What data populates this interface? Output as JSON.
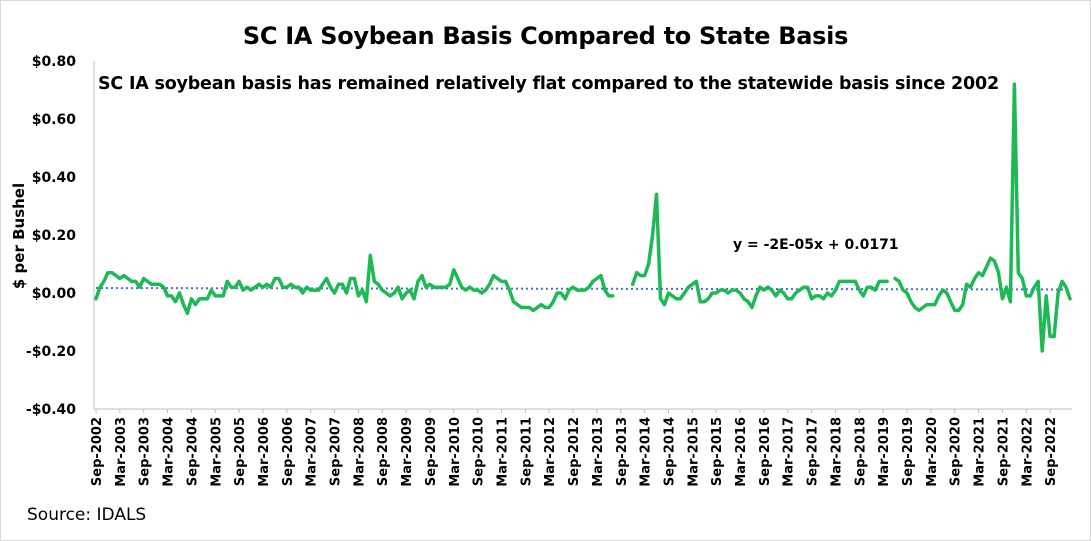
{
  "chart_data": {
    "type": "line",
    "title": "SC IA Soybean Basis Compared to State Basis",
    "subtitle": "SC IA soybean basis has remained relatively flat compared to the statewide basis since 2002",
    "ylabel": "$ per Bushel",
    "xlabel": "",
    "ylim": [
      -0.4,
      0.8
    ],
    "yticks": [
      0.8,
      0.6,
      0.4,
      0.2,
      0.0,
      -0.2,
      -0.4
    ],
    "ytick_labels": [
      "$0.80",
      "$0.60",
      "$0.40",
      "$0.20",
      "$0.00",
      "-$0.20",
      "-$0.40"
    ],
    "xtick_labels": [
      "Sep-2002",
      "Mar-2003",
      "Sep-2003",
      "Mar-2004",
      "Sep-2004",
      "Mar-2005",
      "Sep-2005",
      "Mar-2006",
      "Sep-2006",
      "Mar-2007",
      "Sep-2007",
      "Mar-2008",
      "Sep-2008",
      "Mar-2009",
      "Sep-2009",
      "Mar-2010",
      "Sep-2010",
      "Mar-2011",
      "Sep-2011",
      "Mar-2012",
      "Sep-2012",
      "Mar-2013",
      "Sep-2013",
      "Mar-2014",
      "Sep-2014",
      "Mar-2015",
      "Sep-2015",
      "Mar-2016",
      "Sep-2016",
      "Mar-2017",
      "Sep-2017",
      "Mar-2018",
      "Sep-2018",
      "Mar-2019",
      "Sep-2019",
      "Mar-2020",
      "Sep-2020",
      "Mar-2021",
      "Sep-2021",
      "Mar-2022",
      "Sep-2022"
    ],
    "x_start": "Sep-2002",
    "x_end": "Feb-2023",
    "grid": false,
    "series": [
      {
        "color": "#1db954",
        "values": [
          -0.02,
          0.02,
          0.04,
          0.07,
          0.07,
          0.06,
          0.05,
          0.06,
          0.05,
          0.04,
          0.04,
          0.02,
          0.05,
          0.04,
          0.03,
          0.03,
          0.03,
          0.02,
          -0.01,
          -0.01,
          -0.03,
          0.0,
          -0.04,
          -0.07,
          -0.02,
          -0.04,
          -0.02,
          -0.02,
          -0.02,
          0.01,
          -0.01,
          -0.01,
          -0.01,
          0.04,
          0.02,
          0.02,
          0.04,
          0.01,
          0.02,
          0.01,
          0.02,
          0.03,
          0.02,
          0.03,
          0.02,
          0.05,
          0.05,
          0.02,
          0.02,
          0.03,
          0.02,
          0.02,
          0.0,
          0.02,
          0.01,
          0.01,
          0.01,
          0.03,
          0.05,
          0.02,
          0.0,
          0.03,
          0.03,
          0.0,
          0.05,
          0.05,
          -0.01,
          0.01,
          -0.03,
          0.13,
          0.04,
          0.03,
          0.01,
          0.0,
          -0.01,
          0.0,
          0.02,
          -0.02,
          0.0,
          0.01,
          -0.02,
          0.04,
          0.06,
          0.02,
          0.03,
          0.02,
          0.02,
          0.02,
          0.02,
          0.03,
          0.08,
          0.05,
          0.02,
          0.01,
          0.02,
          0.01,
          0.01,
          0.0,
          0.01,
          0.03,
          0.06,
          0.05,
          0.04,
          0.04,
          0.01,
          -0.03,
          -0.04,
          -0.05,
          -0.05,
          -0.05,
          -0.06,
          -0.05,
          -0.04,
          -0.05,
          -0.05,
          -0.03,
          0.0,
          0.0,
          -0.02,
          0.01,
          0.02,
          0.01,
          0.01,
          0.01,
          0.02,
          0.04,
          0.05,
          0.06,
          0.01,
          -0.01,
          -0.01,
          null,
          null,
          null,
          null,
          0.03,
          0.07,
          0.06,
          0.06,
          0.1,
          0.2,
          0.34,
          -0.02,
          -0.04,
          0.0,
          -0.01,
          -0.02,
          -0.02,
          0.0,
          0.02,
          0.03,
          0.04,
          -0.03,
          -0.03,
          -0.02,
          0.0,
          0.0,
          0.01,
          0.01,
          0.0,
          0.01,
          0.01,
          0.0,
          -0.02,
          -0.03,
          -0.05,
          -0.01,
          0.02,
          0.01,
          0.02,
          0.01,
          -0.01,
          0.01,
          0.0,
          -0.02,
          -0.02,
          0.0,
          0.01,
          0.02,
          0.02,
          -0.02,
          -0.01,
          -0.01,
          -0.02,
          0.0,
          -0.01,
          0.01,
          0.04,
          0.04,
          0.04,
          0.04,
          0.04,
          0.01,
          -0.01,
          0.02,
          0.02,
          0.01,
          0.04,
          0.04,
          0.04,
          null,
          0.05,
          0.04,
          0.01,
          0.0,
          -0.03,
          -0.05,
          -0.06,
          -0.05,
          -0.04,
          -0.04,
          -0.04,
          -0.01,
          0.01,
          0.0,
          -0.03,
          -0.06,
          -0.06,
          -0.04,
          0.03,
          0.02,
          0.05,
          0.07,
          0.06,
          0.09,
          0.12,
          0.11,
          0.07,
          -0.02,
          0.02,
          -0.03,
          0.72,
          0.07,
          0.05,
          -0.01,
          -0.01,
          0.02,
          0.04,
          -0.2,
          -0.01,
          -0.15,
          -0.15,
          0.0,
          0.04,
          0.02,
          -0.02
        ]
      },
      {
        "name": "Linear trend",
        "style": "dotted",
        "color": "#4472c4",
        "equation": "y = -2E-05x + 0.0171",
        "slope": -2e-05,
        "intercept": 0.0171
      }
    ]
  },
  "source": "Source: IDALS"
}
